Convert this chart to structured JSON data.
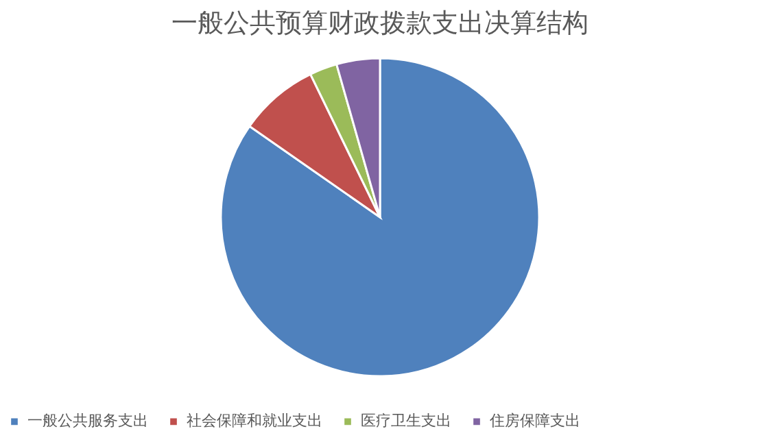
{
  "chart_data": {
    "type": "pie",
    "title": "一般公共预算财政拨款支出决算结构",
    "categories": [
      "一般公共服务支出",
      "社会保障和就业支出",
      "医疗卫生支出",
      "住房保障支出"
    ],
    "values": [
      84.7,
      8.1,
      2.8,
      4.4
    ],
    "colors": [
      "#4f81bd",
      "#c0504d",
      "#9bbb59",
      "#8064a2"
    ],
    "legend": "bottom"
  }
}
